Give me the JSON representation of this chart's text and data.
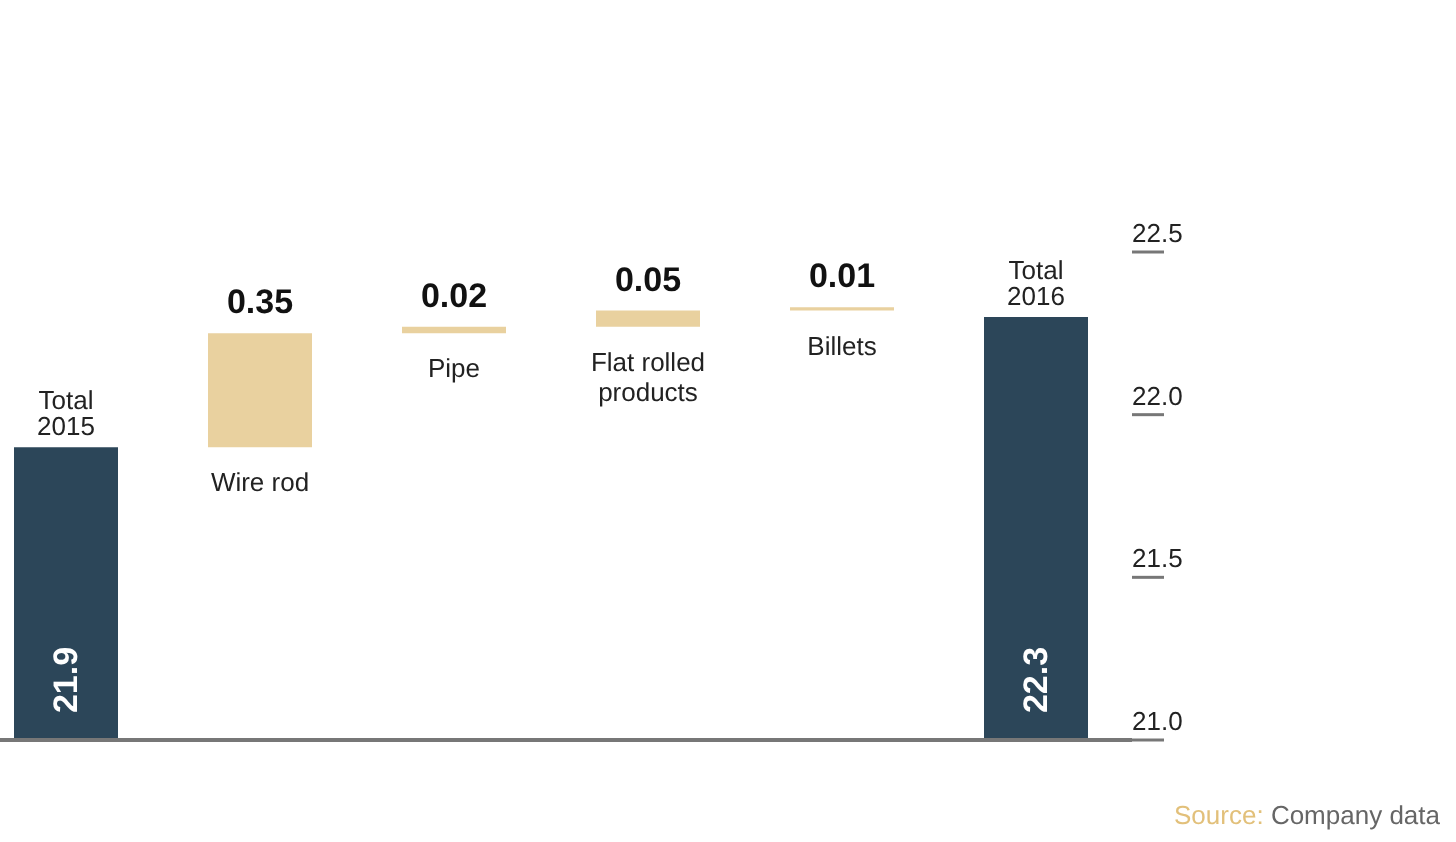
{
  "chart_data": {
    "type": "bar",
    "categories": [
      "Total 2015",
      "Wire rod",
      "Pipe",
      "Flat rolled products",
      "Billets",
      "Total 2016"
    ],
    "values": [
      21.9,
      0.35,
      0.02,
      0.05,
      0.01,
      22.3
    ],
    "base": [
      null,
      21.9,
      22.25,
      22.27,
      22.32,
      null
    ],
    "colors": [
      "#2c4659",
      "#e9d19f",
      "#e9d19f",
      "#e9d19f",
      "#e9d19f",
      "#2c4659"
    ],
    "ylim": [
      21.0,
      22.5
    ],
    "yticks": [
      {
        "value": 21,
        "label": "21.0"
      },
      21.5,
      {
        "value": 22,
        "label": "22.0"
      },
      22.5
    ],
    "data_labels": true,
    "annotations": [
      "Source: Company data"
    ]
  }
}
